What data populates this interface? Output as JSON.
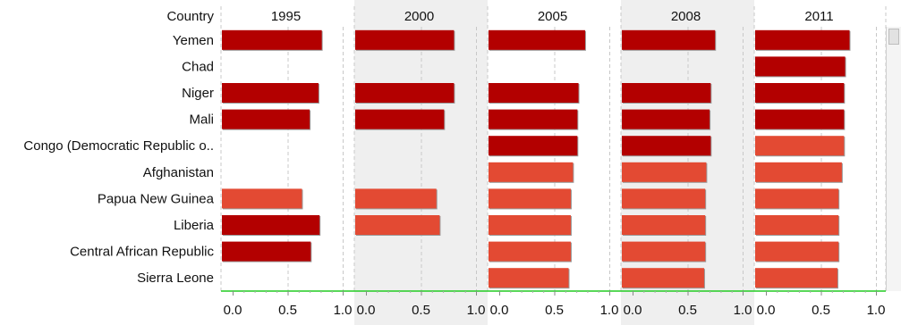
{
  "chart_data": {
    "type": "bar",
    "orientation": "horizontal",
    "category_header": "Country",
    "panels": [
      "1995",
      "2000",
      "2005",
      "2008",
      "2011"
    ],
    "categories": [
      "Yemen",
      "Chad",
      "Niger",
      "Mali",
      "Congo (Democratic Republic o..",
      "Afghanistan",
      "Papua New Guinea",
      "Liberia",
      "Central African Republic",
      "Sierra Leone"
    ],
    "xlim": [
      0,
      1
    ],
    "ticks": [
      "0.0",
      "0.5",
      "1.0"
    ],
    "grid": true,
    "colors": {
      "dark": "#b30000",
      "light": "#e34a33",
      "shading": "#efefef",
      "baseline": "#22cc22"
    },
    "values": [
      [
        0.81,
        0.8,
        0.78,
        0.75,
        0.76
      ],
      [
        null,
        null,
        null,
        null,
        0.72
      ],
      [
        0.78,
        0.8,
        0.72,
        0.71,
        0.71
      ],
      [
        0.7,
        0.71,
        0.71,
        0.7,
        0.71
      ],
      [
        null,
        null,
        0.71,
        0.71,
        0.71
      ],
      [
        null,
        null,
        0.67,
        0.67,
        0.69
      ],
      [
        0.63,
        0.64,
        0.65,
        0.66,
        0.66
      ],
      [
        0.79,
        0.67,
        0.65,
        0.66,
        0.66
      ],
      [
        0.71,
        null,
        0.65,
        0.66,
        0.66
      ],
      [
        null,
        null,
        0.63,
        0.65,
        0.65
      ]
    ],
    "shade": [
      [
        "dark",
        "dark",
        "dark",
        "dark",
        "dark"
      ],
      [
        null,
        null,
        null,
        null,
        "dark"
      ],
      [
        "dark",
        "dark",
        "dark",
        "dark",
        "dark"
      ],
      [
        "dark",
        "dark",
        "dark",
        "dark",
        "dark"
      ],
      [
        null,
        null,
        "dark",
        "dark",
        "light"
      ],
      [
        null,
        null,
        "light",
        "light",
        "light"
      ],
      [
        "light",
        "light",
        "light",
        "light",
        "light"
      ],
      [
        "dark",
        "light",
        "light",
        "light",
        "light"
      ],
      [
        "dark",
        null,
        "light",
        "light",
        "light"
      ],
      [
        null,
        null,
        "light",
        "light",
        "light"
      ]
    ]
  }
}
